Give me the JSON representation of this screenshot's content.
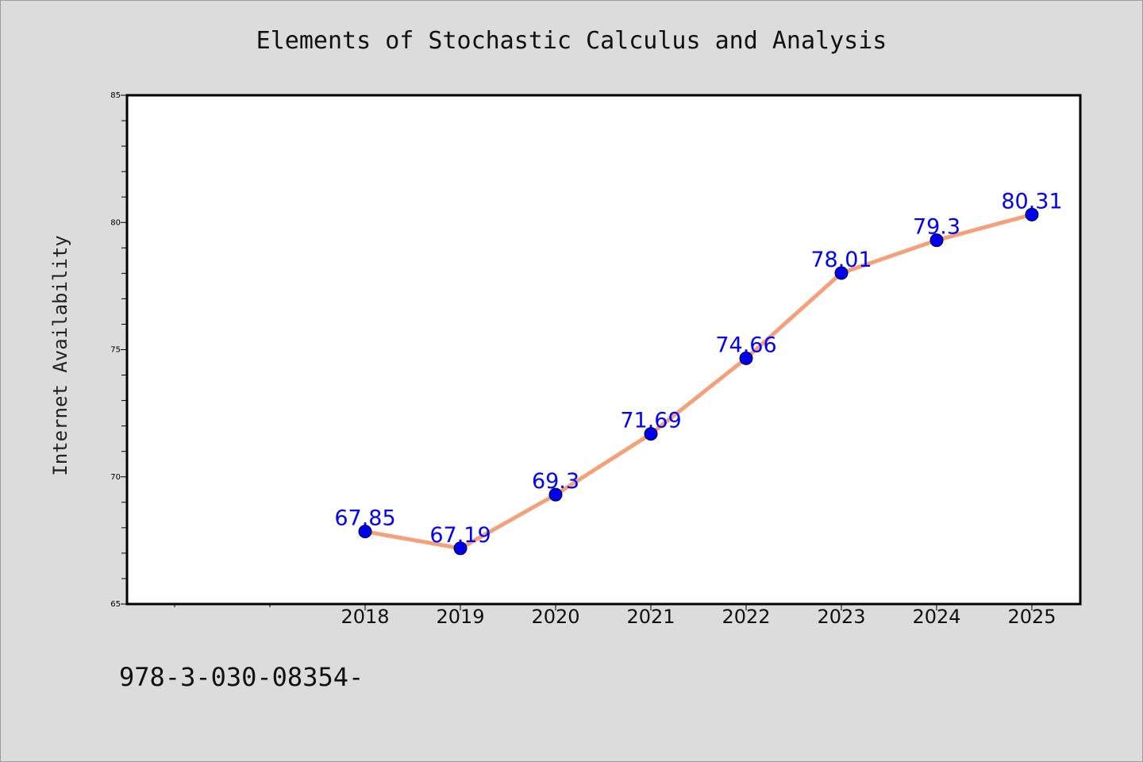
{
  "chart_data": {
    "type": "line",
    "title": "Elements of Stochastic Calculus and Analysis",
    "xlabel": "",
    "ylabel": "Internet Availability",
    "categories": [
      "2018",
      "2019",
      "2020",
      "2021",
      "2022",
      "2023",
      "2024",
      "2025"
    ],
    "series": [
      {
        "values": [
          67.85,
          67.19,
          69.3,
          71.69,
          74.66,
          78.01,
          79.3,
          80.31
        ],
        "data_labels": [
          "67.85",
          "67.19",
          "69.3",
          "71.69",
          "74.66",
          "78.01",
          "79.3",
          "80.31"
        ]
      }
    ],
    "ylim": [
      65,
      85
    ],
    "yticks": [
      "65",
      "70",
      "75",
      "80",
      "85"
    ],
    "grid": false,
    "legend": "none",
    "colors": {
      "line": "#f4a07a",
      "marker": "#0000ee",
      "data_label": "#0000ff",
      "plot_background": "#ffffff",
      "page_background": "#dcdcdc"
    }
  },
  "footer": {
    "isbn_text": "978-3-030-08354-"
  }
}
